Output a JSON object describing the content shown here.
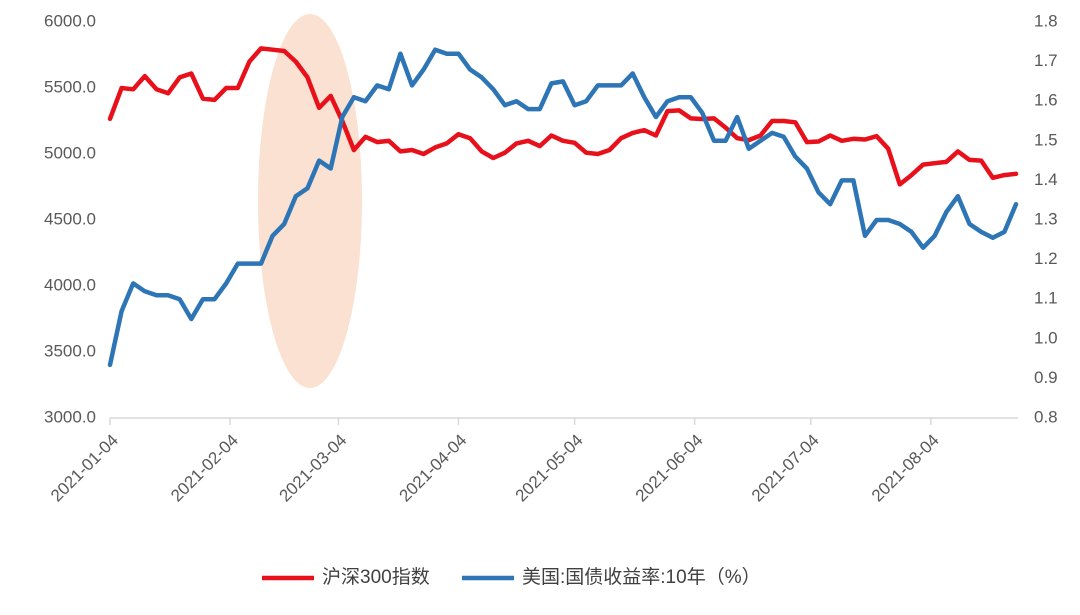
{
  "chart_data": {
    "type": "line",
    "x": [
      "2021-01-04",
      "2021-01-07",
      "2021-01-10",
      "2021-01-13",
      "2021-01-16",
      "2021-01-19",
      "2021-01-22",
      "2021-01-25",
      "2021-01-28",
      "2021-01-31",
      "2021-02-03",
      "2021-02-06",
      "2021-02-09",
      "2021-02-12",
      "2021-02-15",
      "2021-02-18",
      "2021-02-21",
      "2021-02-24",
      "2021-02-27",
      "2021-03-02",
      "2021-03-05",
      "2021-03-08",
      "2021-03-11",
      "2021-03-14",
      "2021-03-17",
      "2021-03-20",
      "2021-03-23",
      "2021-03-26",
      "2021-03-29",
      "2021-04-01",
      "2021-04-04",
      "2021-04-07",
      "2021-04-10",
      "2021-04-13",
      "2021-04-16",
      "2021-04-19",
      "2021-04-22",
      "2021-04-25",
      "2021-04-28",
      "2021-05-01",
      "2021-05-04",
      "2021-05-07",
      "2021-05-10",
      "2021-05-13",
      "2021-05-16",
      "2021-05-19",
      "2021-05-22",
      "2021-05-25",
      "2021-05-28",
      "2021-05-31",
      "2021-06-03",
      "2021-06-06",
      "2021-06-09",
      "2021-06-12",
      "2021-06-15",
      "2021-06-18",
      "2021-06-21",
      "2021-06-24",
      "2021-06-27",
      "2021-06-30",
      "2021-07-03",
      "2021-07-06",
      "2021-07-09",
      "2021-07-12",
      "2021-07-15",
      "2021-07-18",
      "2021-07-21",
      "2021-07-24",
      "2021-07-27",
      "2021-07-30",
      "2021-08-02",
      "2021-08-05",
      "2021-08-08",
      "2021-08-11",
      "2021-08-14",
      "2021-08-17",
      "2021-08-20",
      "2021-08-23",
      "2021-08-26"
    ],
    "series": [
      {
        "name": "沪深300指数",
        "color": "#e8101a",
        "values": [
          5267,
          5500,
          5490,
          5590,
          5490,
          5460,
          5580,
          5610,
          5420,
          5410,
          5500,
          5500,
          5700,
          5800,
          5790,
          5780,
          5700,
          5580,
          5350,
          5440,
          5250,
          5030,
          5130,
          5090,
          5100,
          5020,
          5030,
          5000,
          5050,
          5080,
          5150,
          5120,
          5020,
          4970,
          5010,
          5080,
          5100,
          5060,
          5140,
          5100,
          5085,
          5010,
          5000,
          5030,
          5120,
          5160,
          5180,
          5140,
          5325,
          5330,
          5270,
          5265,
          5270,
          5200,
          5120,
          5105,
          5140,
          5250,
          5250,
          5240,
          5090,
          5095,
          5140,
          5100,
          5115,
          5110,
          5135,
          5040,
          4770,
          4840,
          4920,
          4930,
          4940,
          5020,
          4955,
          4950,
          4820,
          4840,
          4850
        ]
      },
      {
        "name": "美国:国债收益率:10年（%）",
        "color": "#2e75b6",
        "axis": "y2",
        "values": [
          0.934,
          1.07,
          1.14,
          1.12,
          1.11,
          1.11,
          1.1,
          1.05,
          1.1,
          1.1,
          1.14,
          1.19,
          1.19,
          1.19,
          1.26,
          1.29,
          1.36,
          1.38,
          1.45,
          1.43,
          1.56,
          1.61,
          1.6,
          1.64,
          1.63,
          1.72,
          1.64,
          1.68,
          1.73,
          1.72,
          1.72,
          1.68,
          1.66,
          1.63,
          1.59,
          1.6,
          1.58,
          1.58,
          1.645,
          1.65,
          1.59,
          1.6,
          1.64,
          1.64,
          1.64,
          1.67,
          1.61,
          1.56,
          1.6,
          1.61,
          1.61,
          1.57,
          1.5,
          1.5,
          1.56,
          1.48,
          1.5,
          1.52,
          1.51,
          1.46,
          1.43,
          1.37,
          1.34,
          1.4,
          1.4,
          1.26,
          1.3,
          1.3,
          1.29,
          1.27,
          1.23,
          1.26,
          1.32,
          1.36,
          1.29,
          1.27,
          1.255,
          1.27,
          1.34
        ]
      }
    ],
    "xlim": [
      "2021-01-04",
      "2021-08-26"
    ],
    "xticks": [
      "2021-01-04",
      "2021-02-04",
      "2021-03-04",
      "2021-04-04",
      "2021-05-04",
      "2021-06-04",
      "2021-07-04",
      "2021-08-04"
    ],
    "ylim": [
      3000,
      6000
    ],
    "yticks": [
      {
        "value": 3000,
        "label": "3000.0"
      },
      {
        "value": 3500,
        "label": "3500.0"
      },
      {
        "value": 4000,
        "label": "4000.0"
      },
      {
        "value": 4500,
        "label": "4500.0"
      },
      {
        "value": 5000,
        "label": "5000.0"
      },
      {
        "value": 5500,
        "label": "5500.0"
      },
      {
        "value": 6000,
        "label": "6000.0"
      }
    ],
    "y2lim": [
      0.8,
      1.8
    ],
    "y2ticks": [
      0.8,
      0.9,
      {
        "value": 1,
        "label": "1.0"
      },
      1.1,
      1.2,
      1.3,
      1.4,
      1.5,
      1.6,
      1.7,
      1.8
    ],
    "grid": false,
    "legend": "bottom"
  }
}
